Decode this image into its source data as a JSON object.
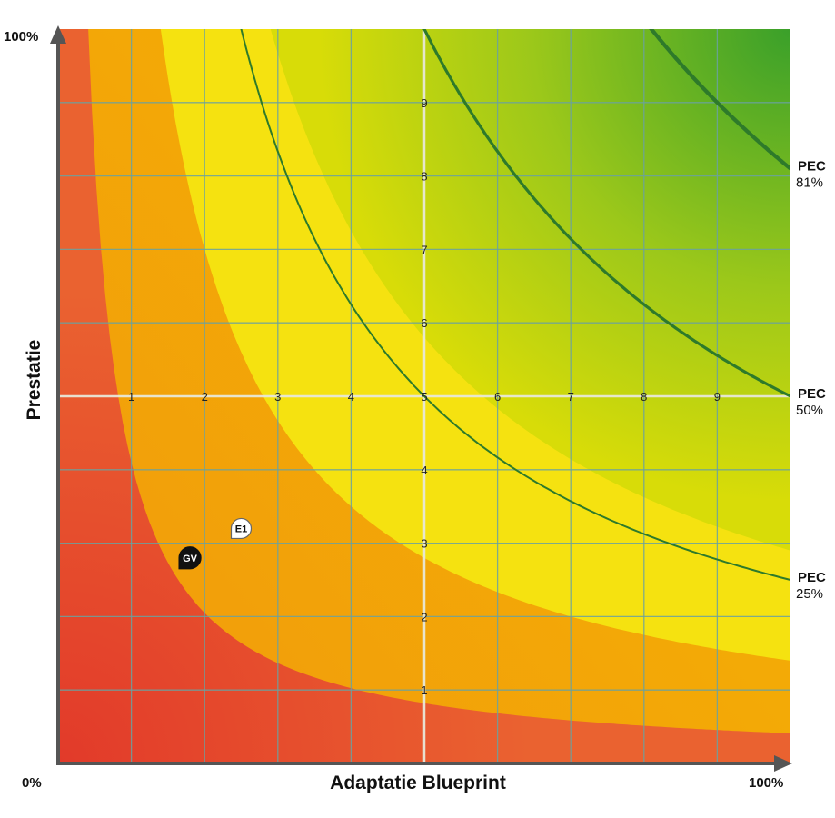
{
  "chart_data": {
    "type": "scatter",
    "title": "",
    "xlabel": "Adaptatie Blueprint",
    "ylabel": "Prestatie",
    "xlim": [
      0,
      10
    ],
    "ylim": [
      0,
      10
    ],
    "axis_min_label": "0%",
    "x_max_label": "100%",
    "y_max_label": "100%",
    "x_ticks": [
      "1",
      "2",
      "3",
      "4",
      "5",
      "6",
      "7",
      "8",
      "9"
    ],
    "y_ticks": [
      "1",
      "2",
      "3",
      "4",
      "5",
      "6",
      "7",
      "8",
      "9"
    ],
    "grid": true,
    "zones": [
      {
        "name": "red",
        "color": "#e8452a",
        "boundary_k": 0
      },
      {
        "name": "orange",
        "color": "#f0a500",
        "boundary_k": 4.1
      },
      {
        "name": "yellow",
        "color": "#f5e210",
        "boundary_k": 14.0
      },
      {
        "name": "green",
        "color": "#3a9e2a",
        "boundary_k": 29.0
      }
    ],
    "curves": [
      {
        "name": "PEC",
        "value_label": "25%",
        "k": 25.0
      },
      {
        "name": "PEC",
        "value_label": "50%",
        "k": 50.0
      },
      {
        "name": "PEC",
        "value_label": "81%",
        "k": 81.0
      }
    ],
    "points": [
      {
        "label": "GV",
        "x": 1.8,
        "y": 2.8,
        "style": "dark"
      },
      {
        "label": "E1",
        "x": 2.5,
        "y": 3.2,
        "style": "light"
      }
    ]
  }
}
